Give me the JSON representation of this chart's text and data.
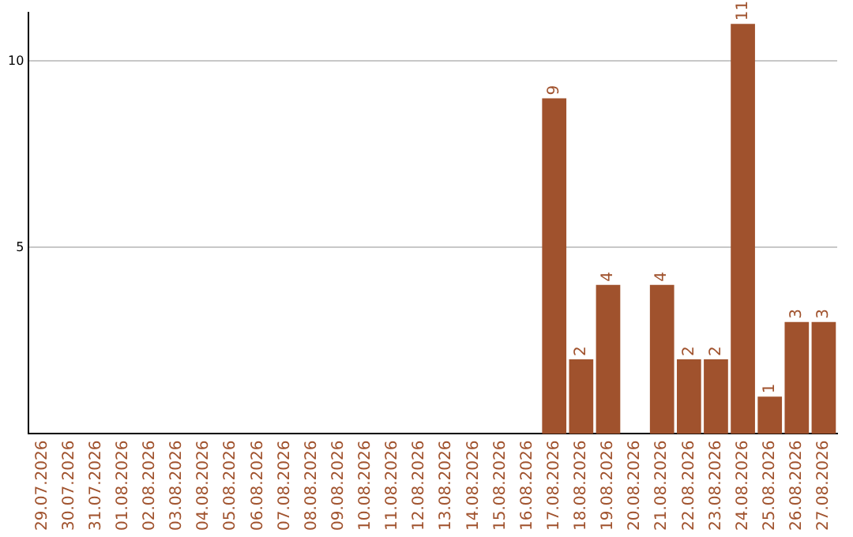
{
  "chart_data": {
    "type": "bar",
    "categories": [
      "29.07.2026",
      "30.07.2026",
      "31.07.2026",
      "01.08.2026",
      "02.08.2026",
      "03.08.2026",
      "04.08.2026",
      "05.08.2026",
      "06.08.2026",
      "07.08.2026",
      "08.08.2026",
      "09.08.2026",
      "10.08.2026",
      "11.08.2026",
      "12.08.2026",
      "13.08.2026",
      "14.08.2026",
      "15.08.2026",
      "16.08.2026",
      "17.08.2026",
      "18.08.2026",
      "19.08.2026",
      "20.08.2026",
      "21.08.2026",
      "22.08.2026",
      "23.08.2026",
      "24.08.2026",
      "25.08.2026",
      "26.08.2026",
      "27.08.2026"
    ],
    "values": [
      0,
      0,
      0,
      0,
      0,
      0,
      0,
      0,
      0,
      0,
      0,
      0,
      0,
      0,
      0,
      0,
      0,
      0,
      0,
      9,
      2,
      4,
      0,
      4,
      2,
      2,
      11,
      1,
      3,
      3
    ],
    "value_labels": [
      null,
      null,
      null,
      null,
      null,
      null,
      null,
      null,
      null,
      null,
      null,
      null,
      null,
      null,
      null,
      null,
      null,
      null,
      null,
      "9",
      "2",
      "4",
      null,
      "4",
      "2",
      "2",
      "11",
      "1",
      "3",
      "3"
    ],
    "color": "#a0522d",
    "ylim": [
      0,
      11.3
    ],
    "yticks": [
      5,
      10
    ],
    "grid": "y",
    "legend": false
  }
}
